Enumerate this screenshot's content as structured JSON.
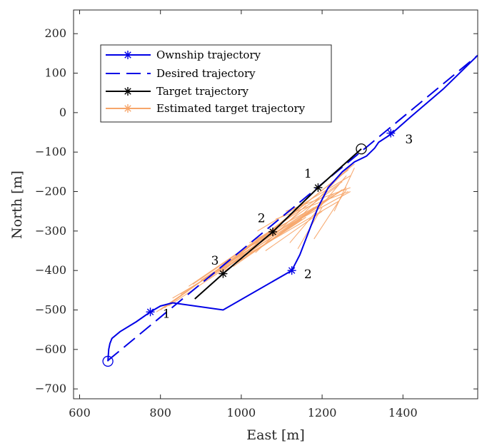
{
  "chart_data": {
    "type": "line",
    "xlabel": "East [m]",
    "ylabel": "North [m]",
    "xlim": [
      585,
      1585
    ],
    "ylim": [
      -725,
      260
    ],
    "xticks": [
      600,
      800,
      1000,
      1200,
      1400
    ],
    "yticks": [
      200,
      100,
      0,
      -100,
      -200,
      -300,
      -400,
      -500,
      -600,
      -700
    ],
    "xtick_labels": [
      "600",
      "800",
      "1000",
      "1200",
      "1400"
    ],
    "ytick_labels": [
      "200",
      "100",
      "0",
      "−100",
      "−200",
      "−300",
      "−400",
      "−500",
      "−600",
      "−700"
    ],
    "grid": false,
    "legend_position": "upper-left",
    "series": [
      {
        "name": "Ownship trajectory",
        "color": "#0000e6",
        "style": "solid",
        "marker": "asterisk",
        "x": [
          670,
          672,
          675,
          680,
          700,
          740,
          775,
          800,
          830,
          955,
          1125,
          1145,
          1160,
          1175,
          1190,
          1215,
          1250,
          1280,
          1310,
          1330,
          1340,
          1370,
          1420,
          1500,
          1585
        ],
        "y": [
          -630,
          -600,
          -585,
          -572,
          -555,
          -530,
          -505,
          -490,
          -482,
          -500,
          -400,
          -360,
          -320,
          -280,
          -240,
          -190,
          -150,
          -125,
          -110,
          -90,
          -75,
          -55,
          -10,
          60,
          145
        ],
        "markers_x": [
          775,
          1125,
          1370
        ],
        "markers_y": [
          -505,
          -400,
          -52
        ]
      },
      {
        "name": "Desired trajectory",
        "color": "#0000e6",
        "style": "dashed",
        "x": [
          670,
          1585
        ],
        "y": [
          -628,
          145
        ]
      },
      {
        "name": "Target trajectory",
        "color": "#000000",
        "style": "solid",
        "marker": "asterisk",
        "x": [
          885,
          955,
          1078,
          1190,
          1297
        ],
        "y": [
          -472,
          -408,
          -302,
          -190,
          -92
        ],
        "markers_x": [
          955,
          1078,
          1190
        ],
        "markers_y": [
          -408,
          -302,
          -190
        ]
      },
      {
        "name": "Estimated target trajectory",
        "color": "#f7a66b",
        "style": "solid",
        "marker": "asterisk",
        "segments": [
          [
            [
              790,
              -505
            ],
            [
              1005,
              -355
            ]
          ],
          [
            [
              800,
              -500
            ],
            [
              1090,
              -290
            ]
          ],
          [
            [
              810,
              -495
            ],
            [
              1120,
              -265
            ]
          ],
          [
            [
              820,
              -490
            ],
            [
              1180,
              -245
            ]
          ],
          [
            [
              830,
              -470
            ],
            [
              1240,
              -225
            ]
          ],
          [
            [
              850,
              -460
            ],
            [
              1260,
              -190
            ]
          ],
          [
            [
              870,
              -440
            ],
            [
              1250,
              -175
            ]
          ],
          [
            [
              880,
              -435
            ],
            [
              1060,
              -310
            ]
          ],
          [
            [
              900,
              -425
            ],
            [
              1180,
              -240
            ]
          ],
          [
            [
              920,
              -420
            ],
            [
              1265,
              -145
            ]
          ],
          [
            [
              950,
              -405
            ],
            [
              1280,
              -130
            ]
          ],
          [
            [
              980,
              -390
            ],
            [
              1230,
              -210
            ]
          ],
          [
            [
              1000,
              -375
            ],
            [
              1160,
              -265
            ]
          ],
          [
            [
              1010,
              -345
            ],
            [
              1270,
              -200
            ]
          ],
          [
            [
              1020,
              -330
            ],
            [
              1200,
              -230
            ]
          ],
          [
            [
              1035,
              -355
            ],
            [
              1160,
              -235
            ]
          ],
          [
            [
              1050,
              -340
            ],
            [
              1230,
              -205
            ]
          ],
          [
            [
              1060,
              -350
            ],
            [
              1200,
              -250
            ]
          ],
          [
            [
              1070,
              -310
            ],
            [
              1240,
              -185
            ]
          ],
          [
            [
              1085,
              -270
            ],
            [
              1265,
              -200
            ]
          ],
          [
            [
              1100,
              -300
            ],
            [
              1250,
              -195
            ]
          ],
          [
            [
              1120,
              -330
            ],
            [
              1260,
              -160
            ]
          ],
          [
            [
              1140,
              -345
            ],
            [
              1200,
              -240
            ]
          ],
          [
            [
              1180,
              -320
            ],
            [
              1260,
              -195
            ]
          ],
          [
            [
              1150,
              -260
            ],
            [
              1275,
              -130
            ]
          ],
          [
            [
              1230,
              -250
            ],
            [
              1280,
              -140
            ]
          ],
          [
            [
              960,
              -400
            ],
            [
              1150,
              -270
            ]
          ],
          [
            [
              930,
              -410
            ],
            [
              1100,
              -300
            ]
          ],
          [
            [
              1040,
              -300
            ],
            [
              1270,
              -160
            ]
          ],
          [
            [
              1110,
              -250
            ],
            [
              1270,
              -190
            ]
          ]
        ],
        "markers_x": [],
        "markers_y": []
      }
    ],
    "start_markers": [
      {
        "x": 670,
        "y": -630,
        "color": "#0000e6"
      },
      {
        "x": 1297,
        "y": -92,
        "color": "#000000"
      }
    ],
    "annotations": [
      {
        "text": "1",
        "x": 815,
        "y": -520
      },
      {
        "text": "2",
        "x": 1165,
        "y": -420
      },
      {
        "text": "3",
        "x": 1415,
        "y": -78
      },
      {
        "text": "3",
        "x": 935,
        "y": -385
      },
      {
        "text": "2",
        "x": 1050,
        "y": -278
      },
      {
        "text": "1",
        "x": 1165,
        "y": -165
      }
    ]
  }
}
